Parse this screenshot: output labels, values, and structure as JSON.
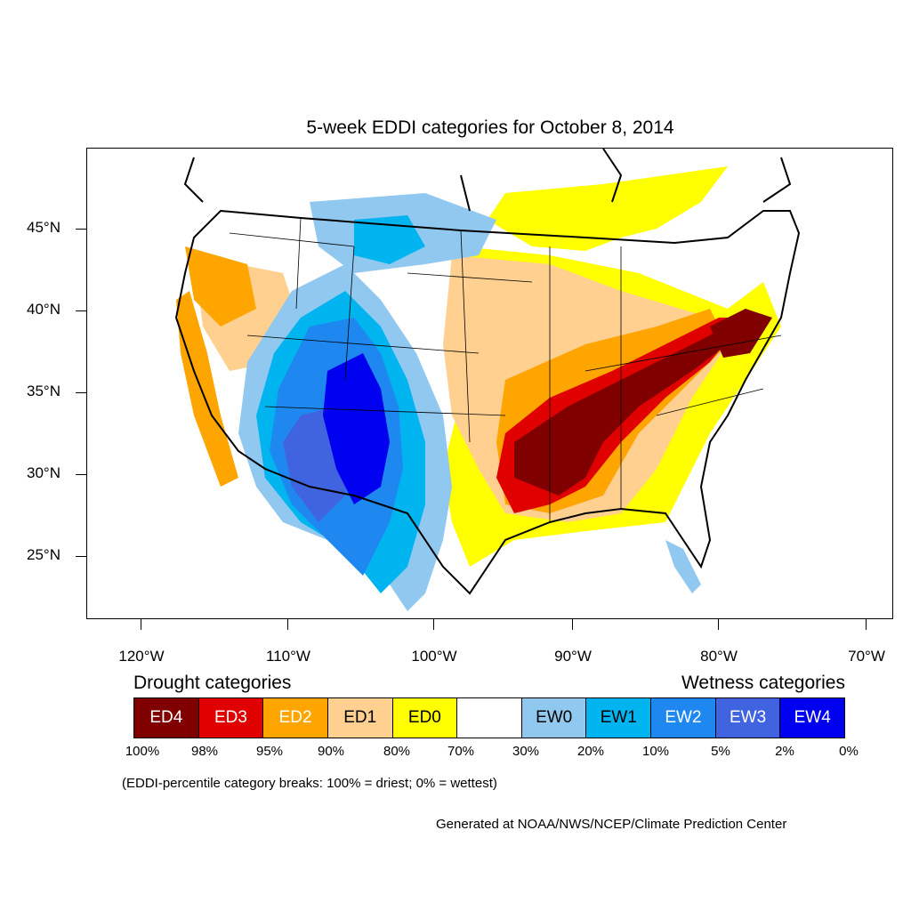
{
  "title": "5-week EDDI categories for October 8, 2014",
  "lat_labels": [
    "45°N",
    "40°N",
    "35°N",
    "30°N",
    "25°N"
  ],
  "lon_labels": [
    "120°W",
    "110°W",
    "100°W",
    "90°W",
    "80°W",
    "70°W"
  ],
  "legend": {
    "drought_heading": "Drought categories",
    "wetness_heading": "Wetness categories",
    "categories": [
      {
        "label": "ED4",
        "color": "#800000",
        "text_color": "#ffffff"
      },
      {
        "label": "ED3",
        "color": "#e00000",
        "text_color": "#ffffff"
      },
      {
        "label": "ED2",
        "color": "#ffa500",
        "text_color": "#ffffff"
      },
      {
        "label": "ED1",
        "color": "#ffd090",
        "text_color": "#000000"
      },
      {
        "label": "ED0",
        "color": "#ffff00",
        "text_color": "#000000"
      },
      {
        "label": "",
        "color": "#ffffff",
        "text_color": "#000000"
      },
      {
        "label": "EW0",
        "color": "#90c8f0",
        "text_color": "#000000"
      },
      {
        "label": "EW1",
        "color": "#00b4f0",
        "text_color": "#000000"
      },
      {
        "label": "EW2",
        "color": "#1e88f0",
        "text_color": "#ffffff"
      },
      {
        "label": "EW3",
        "color": "#4064e0",
        "text_color": "#ffffff"
      },
      {
        "label": "EW4",
        "color": "#0000f0",
        "text_color": "#ffffff"
      }
    ],
    "breaks": [
      "100%",
      "98%",
      "95%",
      "90%",
      "80%",
      "70%",
      "30%",
      "20%",
      "10%",
      "5%",
      "2%",
      "0%"
    ]
  },
  "note": "(EDDI-percentile category breaks: 100% = driest; 0% = wettest)",
  "credit": "Generated at NOAA/NWS/NCEP/Climate Prediction Center"
}
